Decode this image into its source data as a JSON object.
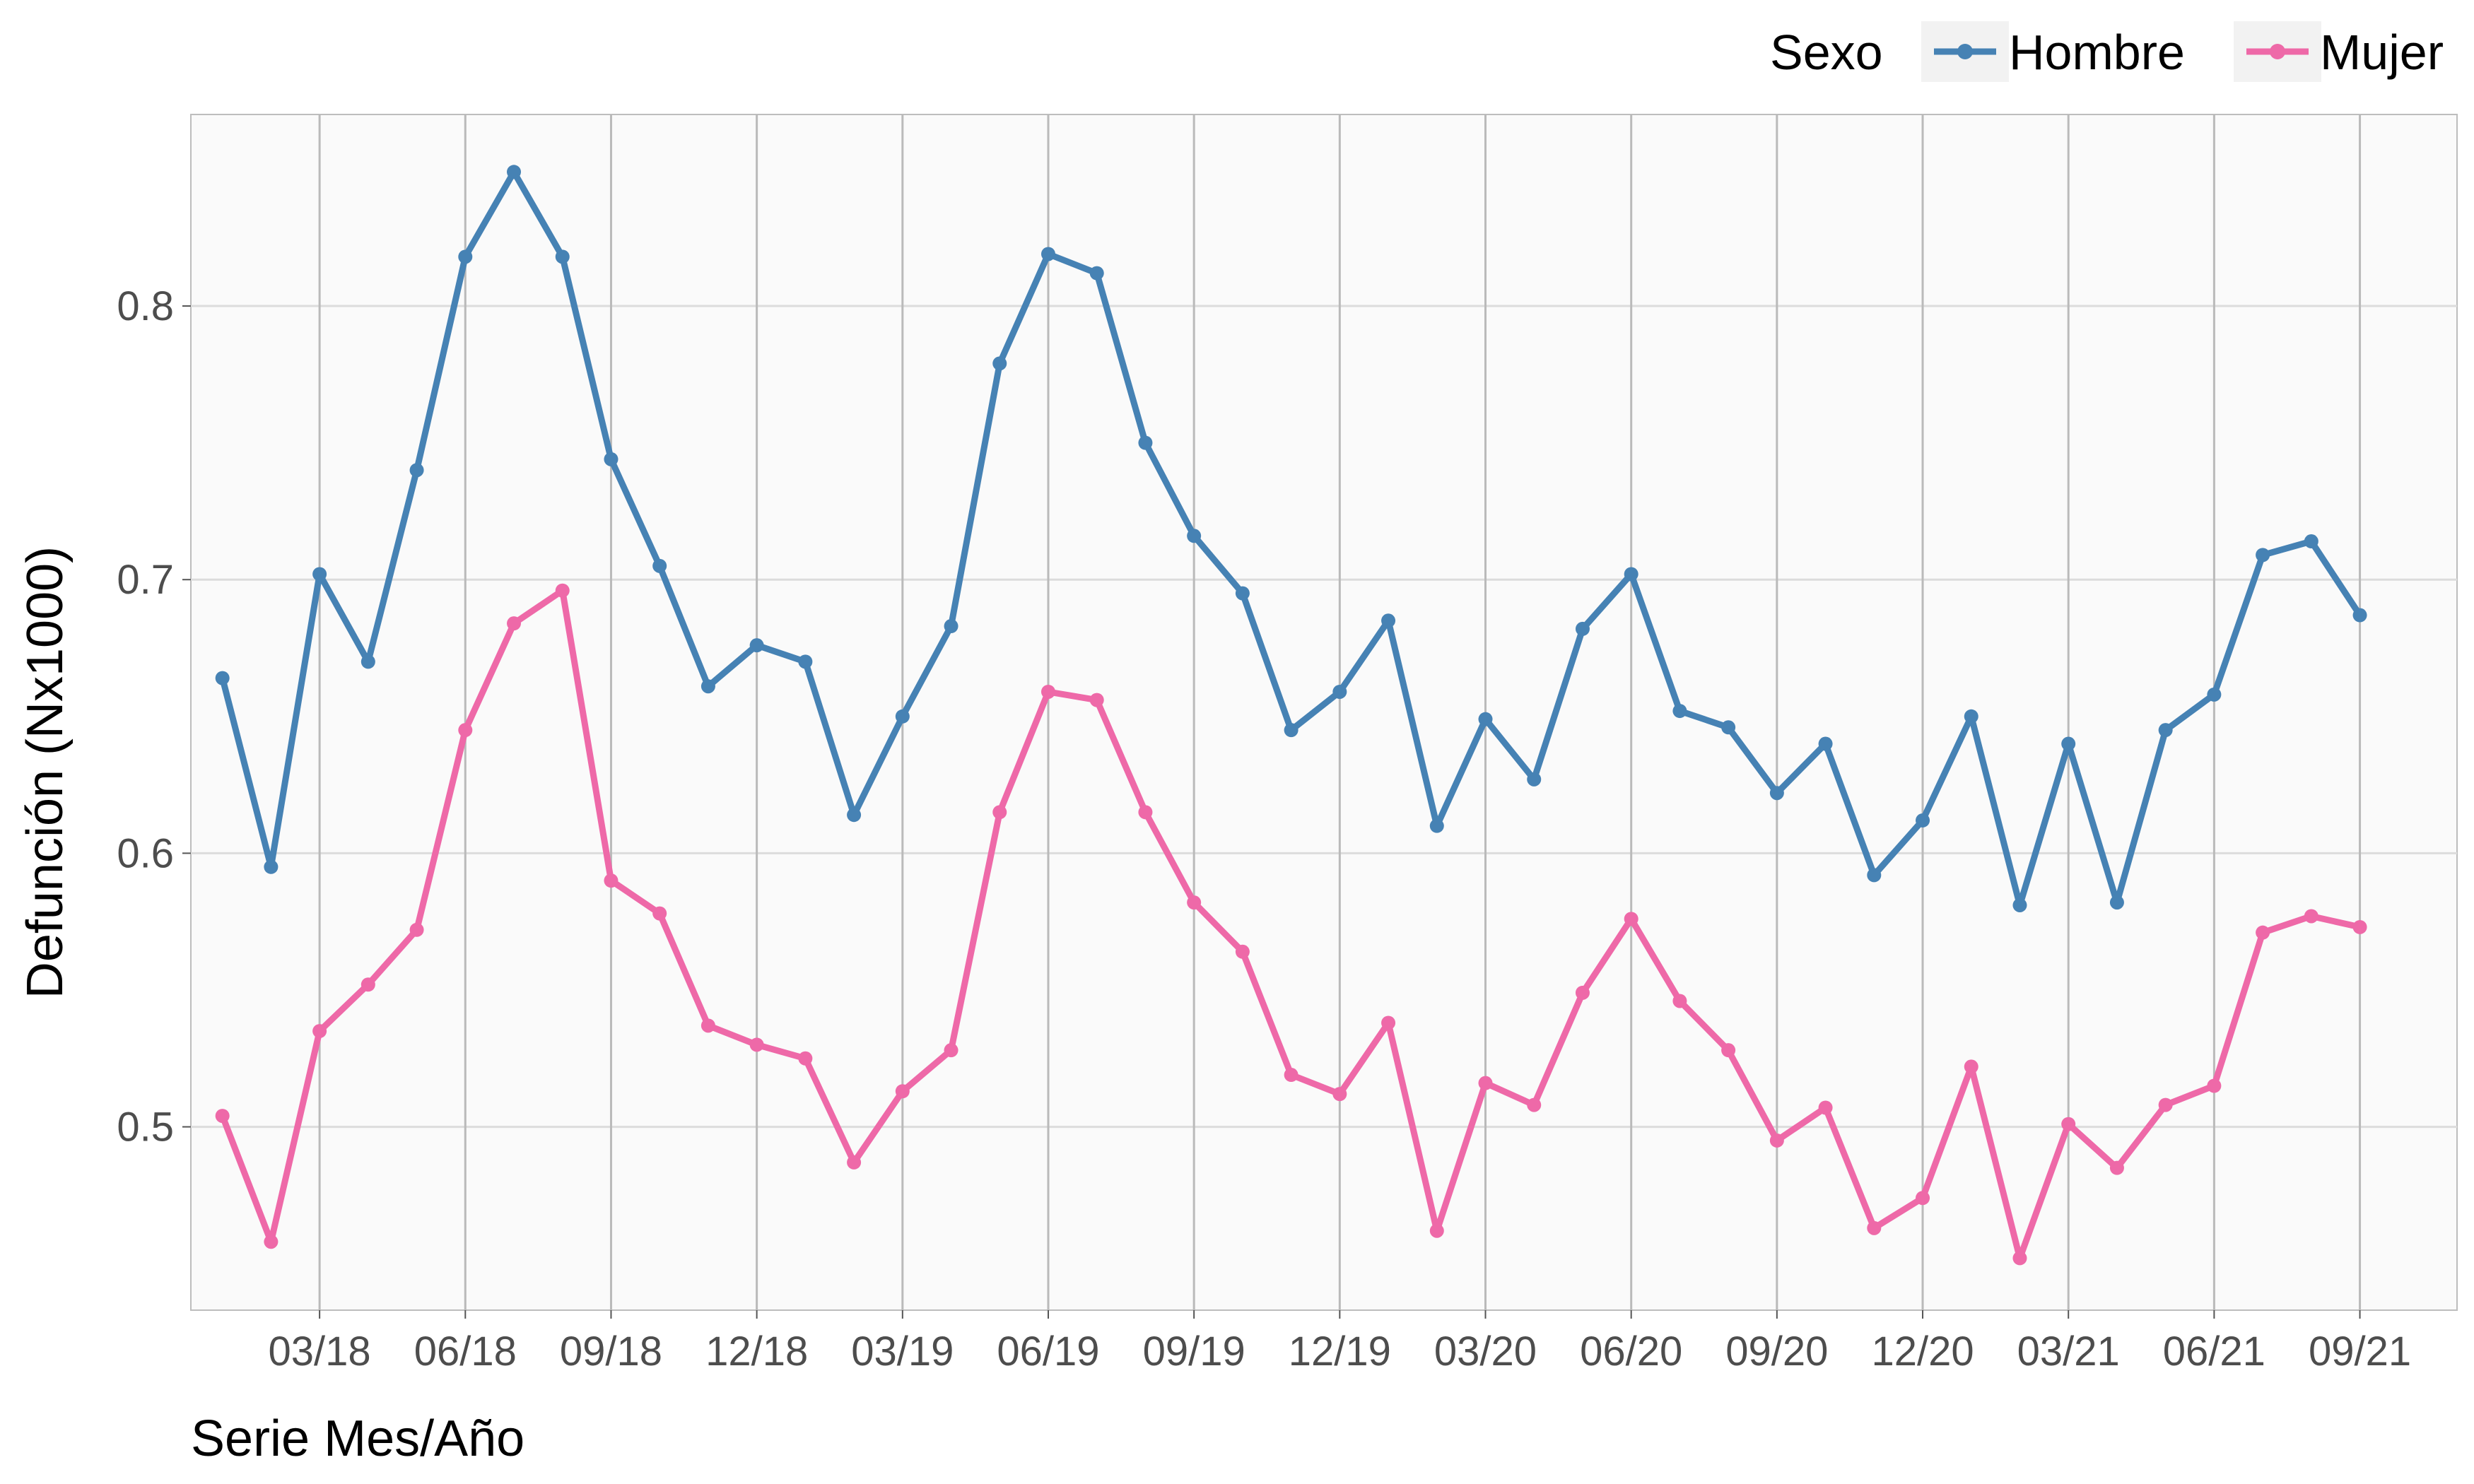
{
  "chart_data": {
    "type": "line",
    "xlabel": "Serie Mes/Año",
    "ylabel": "Defunción (Nx1000)",
    "legend_title": "Sexo",
    "legend_position": "top-right",
    "grid": true,
    "xlim": [
      0.35,
      47.0
    ],
    "ylim": [
      0.433,
      0.87
    ],
    "x_months": [
      "01/18",
      "02/18",
      "03/18",
      "04/18",
      "05/18",
      "06/18",
      "07/18",
      "08/18",
      "09/18",
      "10/18",
      "11/18",
      "12/18",
      "01/19",
      "02/19",
      "03/19",
      "04/19",
      "05/19",
      "06/19",
      "07/19",
      "08/19",
      "09/19",
      "10/19",
      "11/19",
      "12/19",
      "01/20",
      "02/20",
      "03/20",
      "04/20",
      "05/20",
      "06/20",
      "07/20",
      "08/20",
      "09/20",
      "10/20",
      "11/20",
      "12/20",
      "01/21",
      "02/21",
      "03/21",
      "04/21",
      "05/21",
      "06/21",
      "07/21",
      "08/21",
      "09/21"
    ],
    "x_ticks": [
      {
        "index": 3,
        "label": "03/18"
      },
      {
        "index": 6,
        "label": "06/18"
      },
      {
        "index": 9,
        "label": "09/18"
      },
      {
        "index": 12,
        "label": "12/18"
      },
      {
        "index": 15,
        "label": "03/19"
      },
      {
        "index": 18,
        "label": "06/19"
      },
      {
        "index": 21,
        "label": "09/19"
      },
      {
        "index": 24,
        "label": "12/19"
      },
      {
        "index": 27,
        "label": "03/20"
      },
      {
        "index": 30,
        "label": "06/20"
      },
      {
        "index": 33,
        "label": "09/20"
      },
      {
        "index": 36,
        "label": "12/20"
      },
      {
        "index": 39,
        "label": "03/21"
      },
      {
        "index": 42,
        "label": "06/21"
      },
      {
        "index": 45,
        "label": "09/21"
      }
    ],
    "y_ticks": [
      0.5,
      0.6,
      0.7,
      0.8
    ],
    "y_tick_labels": [
      "0.5",
      "0.6",
      "0.7",
      "0.8"
    ],
    "series": [
      {
        "name": "Hombre",
        "color": "#4682B4",
        "values": [
          0.664,
          0.595,
          0.702,
          0.67,
          0.74,
          0.818,
          0.849,
          0.818,
          0.744,
          0.705,
          0.661,
          0.676,
          0.67,
          0.614,
          0.65,
          0.683,
          0.779,
          0.819,
          0.812,
          0.75,
          0.716,
          0.695,
          0.645,
          0.659,
          0.685,
          0.61,
          0.649,
          0.627,
          0.682,
          0.702,
          0.652,
          0.646,
          0.622,
          0.64,
          0.592,
          0.612,
          0.65,
          0.581,
          0.64,
          0.582,
          0.645,
          0.658,
          0.709,
          0.714,
          0.687
        ]
      },
      {
        "name": "Mujer",
        "color": "#EE69A8",
        "values": [
          0.504,
          0.458,
          0.535,
          0.552,
          0.572,
          0.645,
          0.684,
          0.696,
          0.59,
          0.578,
          0.537,
          0.53,
          0.525,
          0.487,
          0.513,
          0.528,
          0.615,
          0.659,
          0.656,
          0.615,
          0.582,
          0.564,
          0.519,
          0.512,
          0.538,
          0.462,
          0.516,
          0.508,
          0.549,
          0.576,
          0.546,
          0.528,
          0.495,
          0.507,
          0.463,
          0.474,
          0.522,
          0.452,
          0.501,
          0.485,
          0.508,
          0.515,
          0.571,
          0.577,
          0.573
        ]
      }
    ]
  }
}
